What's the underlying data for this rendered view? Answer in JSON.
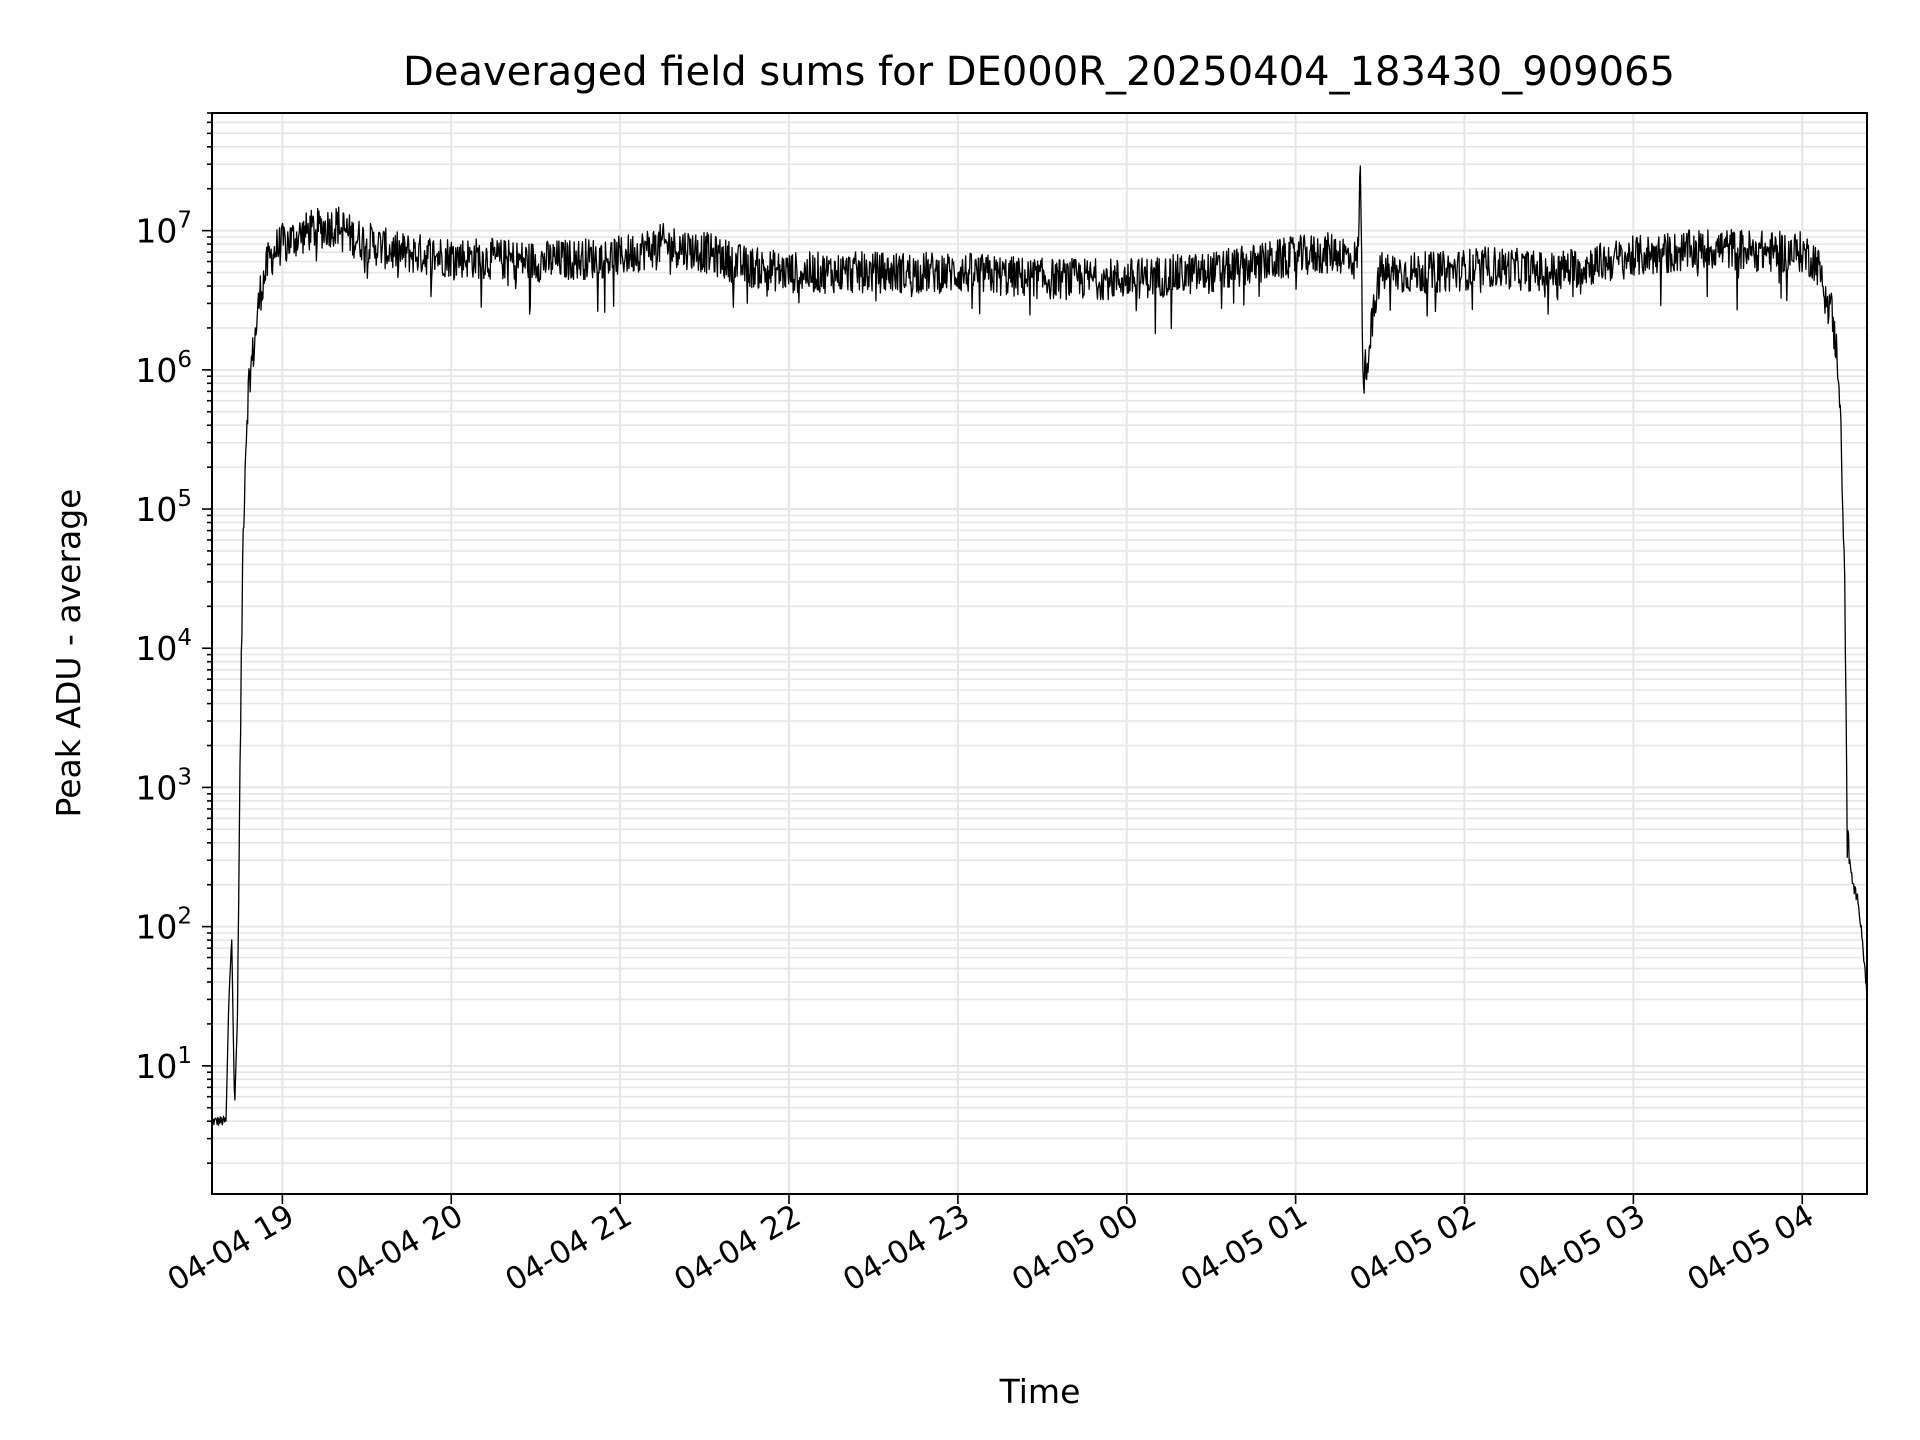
{
  "chart_data": {
    "type": "line",
    "title": "Deaveraged field sums for DE000R_20250404_183430_909065",
    "xlabel": "Time",
    "ylabel": "Peak ADU - average",
    "x_ticks": [
      "04-04 19",
      "04-04 20",
      "04-04 21",
      "04-04 22",
      "04-04 23",
      "04-05 00",
      "04-05 01",
      "04-05 02",
      "04-05 03",
      "04-05 04"
    ],
    "x_range": [
      "2025-04-04 18:35",
      "2025-04-05 04:23"
    ],
    "y_scale": "log",
    "y_range": [
      1.2,
      70000000
    ],
    "y_ticks": [
      10,
      100,
      1000,
      10000,
      100000,
      1000000,
      10000000
    ],
    "y_tick_labels": [
      {
        "base": "10",
        "exp": "1"
      },
      {
        "base": "10",
        "exp": "2"
      },
      {
        "base": "10",
        "exp": "3"
      },
      {
        "base": "10",
        "exp": "4"
      },
      {
        "base": "10",
        "exp": "5"
      },
      {
        "base": "10",
        "exp": "6"
      },
      {
        "base": "10",
        "exp": "7"
      }
    ],
    "grid": true,
    "grid_minor": true,
    "line_color": "#000000",
    "grid_color": "#e6e6e6",
    "series": [
      {
        "x": [
          "2025-04-04 18:35",
          "2025-04-04 18:38",
          "2025-04-04 18:40",
          "2025-04-04 18:41",
          "2025-04-04 18:42",
          "2025-04-04 18:43",
          "2025-04-04 18:44",
          "2025-04-04 18:45",
          "2025-04-04 18:46",
          "2025-04-04 18:47",
          "2025-04-04 18:48",
          "2025-04-04 18:50",
          "2025-04-04 18:52",
          "2025-04-04 18:55",
          "2025-04-04 18:58",
          "2025-04-04 19:00",
          "2025-04-04 19:10",
          "2025-04-04 19:20",
          "2025-04-04 19:25",
          "2025-04-04 19:40",
          "2025-04-04 20:00",
          "2025-04-04 20:30",
          "2025-04-04 21:00",
          "2025-04-04 21:15",
          "2025-04-04 21:30",
          "2025-04-04 21:45",
          "2025-04-04 22:00",
          "2025-04-04 22:30",
          "2025-04-04 23:00",
          "2025-04-04 23:30",
          "2025-04-05 00:00",
          "2025-04-05 00:30",
          "2025-04-05 01:00",
          "2025-04-05 01:15",
          "2025-04-05 01:22",
          "2025-04-05 01:23",
          "2025-04-05 01:24",
          "2025-04-05 01:30",
          "2025-04-05 01:50",
          "2025-04-05 02:10",
          "2025-04-05 02:30",
          "2025-04-05 03:00",
          "2025-04-05 03:30",
          "2025-04-05 03:50",
          "2025-04-05 04:00",
          "2025-04-05 04:05",
          "2025-04-05 04:10",
          "2025-04-05 04:13",
          "2025-04-05 04:15",
          "2025-04-05 04:16",
          "2025-04-05 04:18",
          "2025-04-05 04:20",
          "2025-04-05 04:22",
          "2025-04-05 04:23"
        ],
        "y": [
          4,
          4,
          4,
          30,
          90,
          5,
          20,
          1500,
          60000,
          300000,
          800000,
          1500000,
          3500000,
          6000000,
          7500000,
          8000000,
          10000000,
          11000000,
          9000000,
          7000000,
          6500000,
          6000000,
          6500000,
          8000000,
          7000000,
          5500000,
          5000000,
          5000000,
          5000000,
          4500000,
          4500000,
          5000000,
          6500000,
          7000000,
          6000000,
          30000000,
          800000,
          5000000,
          5000000,
          5500000,
          5000000,
          6500000,
          7500000,
          7000000,
          7000000,
          6000000,
          3000000,
          1000000,
          50000,
          400,
          200,
          150,
          60,
          30
        ]
      }
    ]
  }
}
